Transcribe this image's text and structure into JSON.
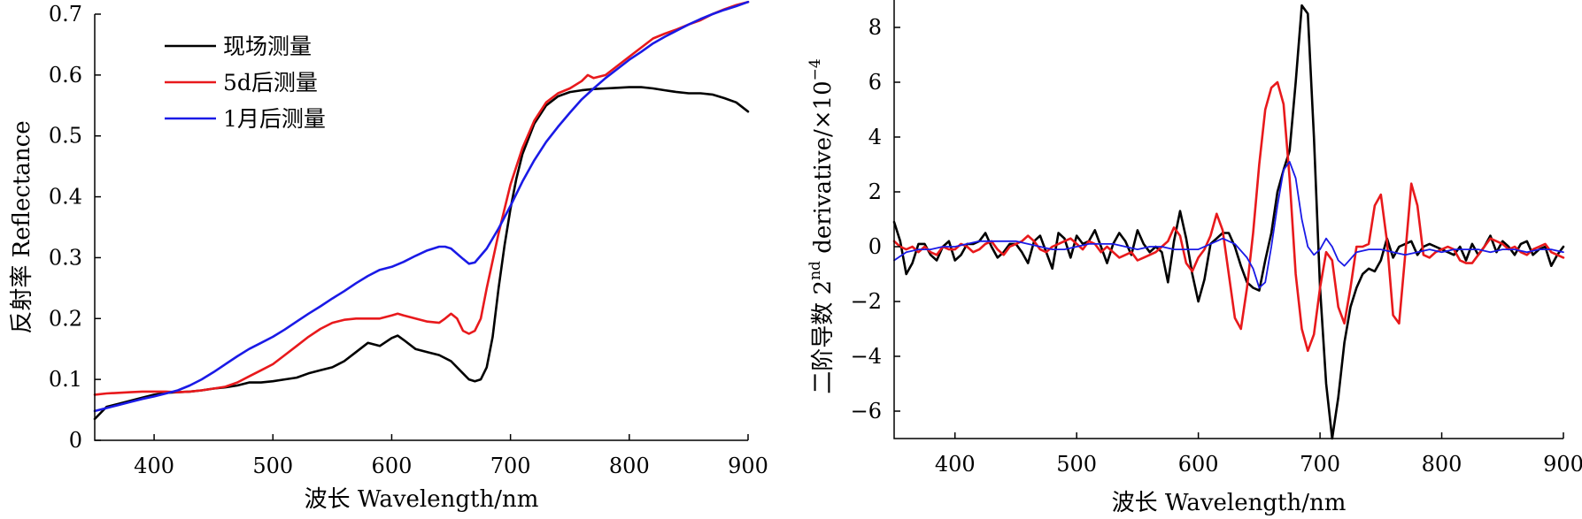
{
  "chart_data": [
    {
      "type": "line",
      "xlabel": "波长 Wavelength/nm",
      "ylabel": "反射率 Reflectance",
      "xlim": [
        350,
        900
      ],
      "ylim": [
        0,
        0.7
      ],
      "xticks": [
        400,
        500,
        600,
        700,
        800,
        900
      ],
      "yticks": [
        0,
        0.1,
        0.2,
        0.3,
        0.4,
        0.5,
        0.6,
        0.7
      ],
      "ytick_labels": [
        "0",
        "0.1",
        "0.2",
        "0.3",
        "0.4",
        "0.5",
        "0.6",
        "0.7"
      ],
      "grid": false,
      "legend_position": "top-left",
      "series": [
        {
          "name": "现场测量",
          "color": "#000000",
          "x": [
            350,
            360,
            370,
            380,
            390,
            400,
            410,
            420,
            430,
            440,
            450,
            460,
            470,
            480,
            490,
            500,
            510,
            520,
            530,
            540,
            550,
            560,
            570,
            580,
            590,
            600,
            605,
            610,
            620,
            630,
            640,
            650,
            660,
            665,
            670,
            675,
            680,
            685,
            690,
            695,
            700,
            705,
            710,
            720,
            730,
            740,
            750,
            760,
            770,
            780,
            790,
            800,
            810,
            820,
            830,
            840,
            850,
            860,
            870,
            880,
            890,
            900
          ],
          "values": [
            0.035,
            0.055,
            0.06,
            0.065,
            0.07,
            0.075,
            0.078,
            0.079,
            0.08,
            0.082,
            0.085,
            0.087,
            0.09,
            0.095,
            0.095,
            0.097,
            0.1,
            0.103,
            0.11,
            0.115,
            0.12,
            0.13,
            0.145,
            0.16,
            0.155,
            0.168,
            0.172,
            0.165,
            0.15,
            0.145,
            0.14,
            0.13,
            0.11,
            0.1,
            0.097,
            0.1,
            0.12,
            0.17,
            0.25,
            0.32,
            0.38,
            0.43,
            0.47,
            0.52,
            0.55,
            0.565,
            0.572,
            0.575,
            0.577,
            0.578,
            0.579,
            0.58,
            0.58,
            0.578,
            0.575,
            0.572,
            0.57,
            0.57,
            0.568,
            0.562,
            0.555,
            0.54
          ]
        },
        {
          "name": "5d后测量",
          "color": "#e8191c",
          "x": [
            350,
            360,
            370,
            380,
            390,
            400,
            410,
            420,
            430,
            440,
            450,
            460,
            470,
            480,
            490,
            500,
            510,
            520,
            530,
            540,
            550,
            560,
            570,
            580,
            590,
            600,
            605,
            610,
            620,
            630,
            640,
            645,
            650,
            655,
            660,
            665,
            670,
            675,
            680,
            690,
            700,
            710,
            720,
            730,
            740,
            750,
            760,
            765,
            770,
            780,
            790,
            800,
            810,
            820,
            830,
            840,
            850,
            860,
            870,
            880,
            890,
            900
          ],
          "values": [
            0.075,
            0.077,
            0.078,
            0.079,
            0.08,
            0.08,
            0.08,
            0.079,
            0.08,
            0.082,
            0.085,
            0.088,
            0.095,
            0.105,
            0.115,
            0.125,
            0.14,
            0.155,
            0.17,
            0.183,
            0.193,
            0.198,
            0.2,
            0.2,
            0.2,
            0.205,
            0.208,
            0.205,
            0.2,
            0.195,
            0.193,
            0.2,
            0.208,
            0.2,
            0.18,
            0.175,
            0.18,
            0.2,
            0.25,
            0.34,
            0.42,
            0.48,
            0.525,
            0.555,
            0.57,
            0.578,
            0.59,
            0.6,
            0.595,
            0.6,
            0.615,
            0.63,
            0.645,
            0.66,
            0.668,
            0.675,
            0.683,
            0.69,
            0.7,
            0.708,
            0.715,
            0.72
          ]
        },
        {
          "name": "1月后测量",
          "color": "#1a1ae6",
          "x": [
            350,
            360,
            370,
            380,
            390,
            400,
            410,
            420,
            430,
            440,
            450,
            460,
            470,
            480,
            490,
            500,
            510,
            520,
            530,
            540,
            550,
            560,
            570,
            580,
            590,
            600,
            610,
            620,
            630,
            640,
            645,
            650,
            660,
            665,
            670,
            680,
            690,
            700,
            710,
            720,
            730,
            740,
            750,
            760,
            770,
            780,
            790,
            800,
            810,
            820,
            830,
            840,
            850,
            860,
            870,
            880,
            890,
            900
          ],
          "values": [
            0.048,
            0.053,
            0.058,
            0.063,
            0.068,
            0.072,
            0.077,
            0.082,
            0.09,
            0.1,
            0.112,
            0.125,
            0.138,
            0.15,
            0.16,
            0.17,
            0.182,
            0.195,
            0.208,
            0.22,
            0.233,
            0.245,
            0.258,
            0.27,
            0.28,
            0.285,
            0.293,
            0.303,
            0.312,
            0.318,
            0.318,
            0.315,
            0.298,
            0.29,
            0.292,
            0.315,
            0.348,
            0.385,
            0.425,
            0.46,
            0.49,
            0.515,
            0.538,
            0.56,
            0.578,
            0.595,
            0.61,
            0.625,
            0.638,
            0.652,
            0.663,
            0.673,
            0.683,
            0.692,
            0.7,
            0.707,
            0.713,
            0.72
          ]
        }
      ]
    },
    {
      "type": "line",
      "xlabel": "波长 Wavelength/nm",
      "ylabel": "二阶导数 2nd derivative/×10−4",
      "ylabel_parts": {
        "main": "二阶导数 2",
        "sup1": "nd",
        "mid": " derivative/×10",
        "sup2": "−4"
      },
      "xlim": [
        350,
        900
      ],
      "ylim": [
        -7,
        9
      ],
      "xticks": [
        400,
        500,
        600,
        700,
        800,
        900
      ],
      "yticks": [
        -6,
        -4,
        -2,
        0,
        2,
        4,
        6,
        8
      ],
      "ytick_labels": [
        "−6",
        "−4",
        "−2",
        "0",
        "2",
        "4",
        "6",
        "8"
      ],
      "grid": false,
      "series": [
        {
          "name": "",
          "color": "#000000",
          "x": [
            350,
            355,
            360,
            365,
            370,
            375,
            380,
            385,
            390,
            395,
            400,
            405,
            410,
            415,
            420,
            425,
            430,
            435,
            440,
            445,
            450,
            455,
            460,
            465,
            470,
            475,
            480,
            485,
            490,
            495,
            500,
            505,
            510,
            515,
            520,
            525,
            530,
            535,
            540,
            545,
            550,
            555,
            560,
            565,
            570,
            575,
            580,
            585,
            590,
            595,
            600,
            605,
            610,
            615,
            620,
            625,
            630,
            635,
            640,
            645,
            650,
            655,
            660,
            665,
            670,
            675,
            680,
            685,
            690,
            695,
            700,
            705,
            710,
            715,
            720,
            725,
            730,
            735,
            740,
            745,
            750,
            755,
            760,
            765,
            770,
            775,
            780,
            785,
            790,
            795,
            800,
            805,
            810,
            815,
            820,
            825,
            830,
            835,
            840,
            845,
            850,
            855,
            860,
            865,
            870,
            875,
            880,
            885,
            890,
            895,
            900
          ],
          "values": [
            0.9,
            0.2,
            -1.0,
            -0.6,
            0.1,
            0.1,
            -0.3,
            -0.5,
            0.0,
            0.2,
            -0.5,
            -0.3,
            0.1,
            0.1,
            0.2,
            0.5,
            0.0,
            -0.4,
            -0.2,
            0.1,
            0.1,
            -0.2,
            -0.6,
            0.2,
            0.4,
            -0.2,
            -0.8,
            0.5,
            0.3,
            -0.4,
            0.4,
            0.1,
            0.2,
            0.6,
            0.0,
            -0.6,
            0.1,
            0.5,
            0.2,
            -0.3,
            0.6,
            0.1,
            -0.2,
            0.0,
            -0.2,
            -1.3,
            0.2,
            1.3,
            0.3,
            -1.0,
            -2.0,
            -1.2,
            0.1,
            0.3,
            0.5,
            0.5,
            0.0,
            -0.7,
            -1.3,
            -1.5,
            -1.6,
            -0.5,
            0.5,
            2.0,
            2.8,
            3.5,
            6.0,
            8.8,
            8.5,
            4.0,
            -1.5,
            -5.0,
            -7.0,
            -5.5,
            -3.5,
            -2.2,
            -1.5,
            -1.0,
            -0.8,
            -0.9,
            -0.5,
            0.3,
            -0.4,
            0.0,
            0.1,
            0.2,
            -0.3,
            0.0,
            0.1,
            0.0,
            -0.1,
            -0.2,
            -0.3,
            0.0,
            -0.5,
            0.1,
            -0.3,
            0.0,
            0.4,
            -0.2,
            0.2,
            0.0,
            -0.3,
            0.1,
            0.2,
            -0.3,
            -0.1,
            0.0,
            -0.7,
            -0.3,
            0.0
          ]
        },
        {
          "name": "",
          "color": "#e8191c",
          "x": [
            350,
            355,
            360,
            365,
            370,
            375,
            380,
            385,
            390,
            395,
            400,
            405,
            410,
            415,
            420,
            425,
            430,
            435,
            440,
            445,
            450,
            455,
            460,
            465,
            470,
            475,
            480,
            485,
            490,
            495,
            500,
            505,
            510,
            515,
            520,
            525,
            530,
            535,
            540,
            545,
            550,
            555,
            560,
            565,
            570,
            575,
            580,
            585,
            590,
            595,
            600,
            605,
            610,
            615,
            620,
            625,
            630,
            635,
            640,
            645,
            650,
            655,
            660,
            665,
            670,
            675,
            680,
            685,
            690,
            695,
            700,
            705,
            710,
            715,
            720,
            725,
            730,
            735,
            740,
            745,
            750,
            755,
            760,
            765,
            770,
            775,
            780,
            785,
            790,
            795,
            800,
            805,
            810,
            815,
            820,
            825,
            830,
            835,
            840,
            845,
            850,
            855,
            860,
            865,
            870,
            875,
            880,
            885,
            890,
            895,
            900
          ],
          "values": [
            0.2,
            0.0,
            -0.1,
            0.0,
            -0.2,
            0.0,
            -0.2,
            -0.3,
            0.0,
            -0.1,
            -0.1,
            0.1,
            0.0,
            -0.2,
            -0.1,
            0.1,
            0.2,
            -0.1,
            -0.3,
            0.0,
            0.1,
            0.2,
            0.4,
            0.2,
            -0.1,
            -0.2,
            0.0,
            0.1,
            0.2,
            0.3,
            0.1,
            -0.1,
            0.2,
            0.1,
            -0.2,
            0.0,
            -0.2,
            -0.4,
            -0.3,
            -0.2,
            -0.5,
            -0.4,
            -0.3,
            -0.2,
            0.0,
            0.2,
            0.7,
            0.4,
            -0.6,
            -0.9,
            -0.4,
            -0.1,
            0.4,
            1.2,
            0.6,
            -1.0,
            -2.6,
            -3.0,
            -1.5,
            0.5,
            3.0,
            5.0,
            5.8,
            6.0,
            5.2,
            2.5,
            -1.0,
            -3.0,
            -3.8,
            -3.2,
            -1.5,
            -0.2,
            -0.5,
            -2.2,
            -2.8,
            -1.5,
            0.0,
            0.0,
            0.1,
            1.5,
            1.9,
            0.2,
            -2.5,
            -2.8,
            -0.3,
            2.3,
            1.5,
            -0.3,
            -0.4,
            -0.2,
            -0.1,
            0.0,
            -0.1,
            -0.5,
            -0.6,
            -0.6,
            -0.3,
            0.0,
            0.3,
            0.2,
            0.1,
            -0.1,
            0.0,
            -0.2,
            -0.3,
            -0.1,
            0.0,
            0.1,
            -0.2,
            -0.3,
            -0.4
          ]
        },
        {
          "name": "",
          "color": "#1a1ae6",
          "x": [
            350,
            360,
            370,
            380,
            390,
            400,
            410,
            420,
            430,
            440,
            450,
            460,
            470,
            480,
            490,
            500,
            510,
            520,
            530,
            540,
            550,
            560,
            570,
            580,
            590,
            600,
            610,
            620,
            630,
            640,
            645,
            650,
            655,
            660,
            665,
            670,
            675,
            680,
            685,
            690,
            695,
            700,
            705,
            710,
            715,
            720,
            730,
            740,
            750,
            760,
            770,
            780,
            790,
            800,
            810,
            820,
            830,
            840,
            850,
            860,
            870,
            880,
            890,
            900
          ],
          "values": [
            -0.5,
            -0.2,
            -0.1,
            -0.1,
            0.0,
            0.0,
            0.1,
            0.2,
            0.2,
            0.2,
            0.2,
            0.1,
            0.0,
            -0.1,
            -0.1,
            0.0,
            0.1,
            0.1,
            0.1,
            0.0,
            -0.1,
            0.0,
            0.0,
            -0.1,
            -0.1,
            -0.1,
            0.1,
            0.3,
            0.1,
            -0.4,
            -0.8,
            -1.5,
            -1.3,
            0.0,
            1.5,
            2.8,
            3.1,
            2.5,
            1.0,
            0.0,
            -0.3,
            -0.1,
            0.3,
            0.0,
            -0.5,
            -0.7,
            -0.2,
            -0.1,
            -0.1,
            -0.2,
            -0.3,
            -0.2,
            -0.1,
            -0.2,
            -0.1,
            -0.1,
            -0.1,
            -0.2,
            -0.1,
            -0.1,
            -0.2,
            -0.1,
            -0.1,
            -0.2
          ]
        }
      ]
    }
  ]
}
